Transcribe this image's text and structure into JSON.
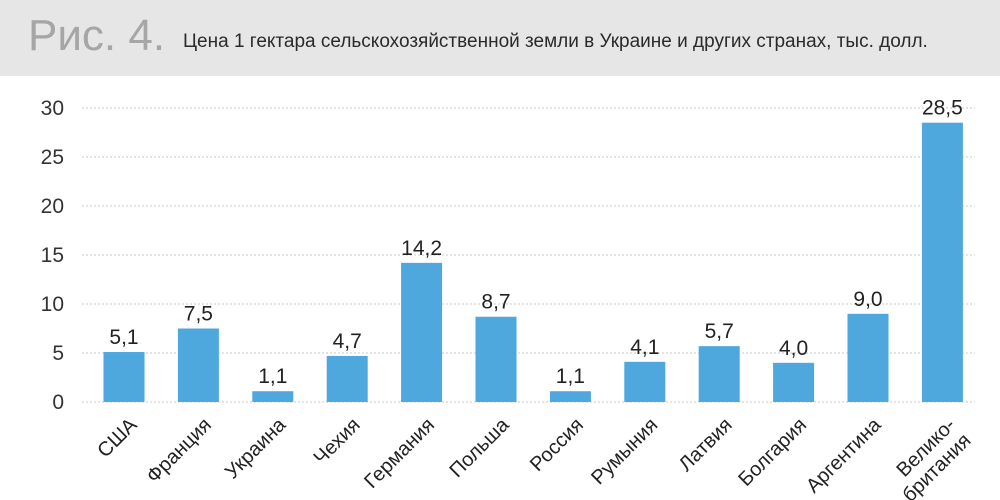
{
  "header": {
    "figure_label": "Рис. 4.",
    "title": "Цена 1 гектара сельскохозяйственной земли в Украине и других странах, тыс. долл."
  },
  "chart_data": {
    "type": "bar",
    "title": "Цена 1 гектара сельскохозяйственной земли в Украине и других странах, тыс. долл.",
    "categories": [
      "США",
      "Франция",
      "Украина",
      "Чехия",
      "Германия",
      "Польша",
      "Россия",
      "Румыния",
      "Латвия",
      "Болгария",
      "Аргентина",
      "Велико-|британия"
    ],
    "values": [
      5.1,
      7.5,
      1.1,
      4.7,
      14.2,
      8.7,
      1.1,
      4.1,
      5.7,
      4.0,
      9.0,
      28.5
    ],
    "value_labels": [
      "5,1",
      "7,5",
      "1,1",
      "4,7",
      "14,2",
      "8,7",
      "1,1",
      "4,1",
      "5,7",
      "4,0",
      "9,0",
      "28,5"
    ],
    "yticks": [
      "0",
      "5",
      "10",
      "15",
      "20",
      "25",
      "30"
    ],
    "ylim": [
      0,
      30
    ],
    "xlabel": "",
    "ylabel": "",
    "grid": true,
    "legend": "none",
    "bar_color": "#4ea8de",
    "grid_color": "#c8c8c8"
  }
}
